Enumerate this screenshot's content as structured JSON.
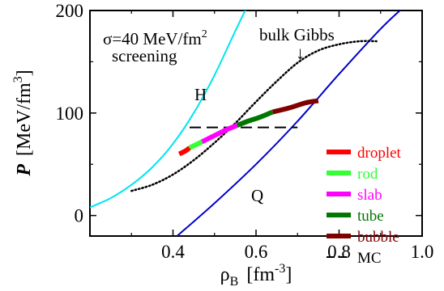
{
  "chart_data": {
    "type": "line",
    "xlabel": {
      "main": "ρ",
      "sub": "B",
      "unit": "[fm",
      "exp": "-3",
      "close": "]"
    },
    "ylabel": {
      "main": "P",
      "unit": "[MeV/fm",
      "exp": "3",
      "close": "]"
    },
    "xlim": [
      0.2,
      1.0
    ],
    "ylim": [
      -20,
      200
    ],
    "xticks": [
      {
        "value": 0.4,
        "label": "0.4"
      },
      {
        "value": 0.6,
        "label": "0.6"
      },
      {
        "value": 0.8,
        "label": "0.8"
      },
      {
        "value": 1.0,
        "label": "1.0"
      }
    ],
    "yticks": [
      {
        "value": 0,
        "label": "0"
      },
      {
        "value": 100,
        "label": "100"
      },
      {
        "value": 200,
        "label": "200"
      }
    ],
    "annotations": {
      "sigma": {
        "text": "σ=40 MeV/fm",
        "exp": "2"
      },
      "screening": "screening",
      "bulk_gibbs": "bulk Gibbs",
      "arrow": "↓",
      "H": "H",
      "Q": "Q"
    },
    "series": [
      {
        "name": "H",
        "color": "#00e5ee",
        "style": "solid",
        "x": [
          0.2,
          0.25,
          0.3,
          0.35,
          0.4,
          0.45,
          0.5,
          0.55,
          0.58
        ],
        "y": [
          8,
          17,
          30,
          47,
          70,
          100,
          137,
          180,
          205
        ]
      },
      {
        "name": "Q",
        "color": "#0000cc",
        "style": "solid",
        "x": [
          0.41,
          0.5,
          0.6,
          0.7,
          0.8,
          0.9,
          0.96
        ],
        "y": [
          -20,
          12,
          50,
          92,
          138,
          182,
          205
        ]
      },
      {
        "name": "bulk Gibbs",
        "color": "#000000",
        "style": "dotted",
        "x": [
          0.3,
          0.35,
          0.4,
          0.45,
          0.5,
          0.55,
          0.6,
          0.65,
          0.7,
          0.75,
          0.8,
          0.85,
          0.89
        ],
        "y": [
          24,
          30,
          40,
          54,
          71,
          90,
          111,
          131,
          149,
          161,
          167,
          170,
          170
        ]
      },
      {
        "name": "MC",
        "color": "#000000",
        "style": "dashed",
        "x": [
          0.44,
          0.7
        ],
        "y": [
          86,
          86
        ]
      },
      {
        "name": "droplet",
        "color": "#ff0000",
        "style": "thick",
        "x": [
          0.415,
          0.43,
          0.44
        ],
        "y": [
          60,
          63,
          66
        ]
      },
      {
        "name": "rod",
        "color": "#33ff33",
        "style": "thick",
        "x": [
          0.44,
          0.455,
          0.47
        ],
        "y": [
          66,
          69,
          72
        ]
      },
      {
        "name": "slab",
        "color": "#ff00ff",
        "style": "thick",
        "x": [
          0.47,
          0.5,
          0.53,
          0.555
        ],
        "y": [
          72,
          78,
          84,
          88
        ]
      },
      {
        "name": "tube",
        "color": "#007700",
        "style": "thick",
        "x": [
          0.555,
          0.58,
          0.61,
          0.64
        ],
        "y": [
          88,
          92,
          96,
          101
        ]
      },
      {
        "name": "bubble",
        "color": "#800000",
        "style": "thick",
        "x": [
          0.64,
          0.68,
          0.72,
          0.75
        ],
        "y": [
          101,
          105,
          110,
          112
        ]
      }
    ],
    "legend": {
      "placement": "bottom-right",
      "entries": [
        {
          "label": "droplet",
          "color": "#ff0000",
          "style": "thick"
        },
        {
          "label": "rod",
          "color": "#33ff33",
          "style": "thick"
        },
        {
          "label": "slab",
          "color": "#ff00ff",
          "style": "thick"
        },
        {
          "label": "tube",
          "color": "#007700",
          "style": "thick"
        },
        {
          "label": "bubble",
          "color": "#800000",
          "style": "thick"
        },
        {
          "label": "MC",
          "color": "#000000",
          "style": "dashed"
        }
      ]
    }
  }
}
